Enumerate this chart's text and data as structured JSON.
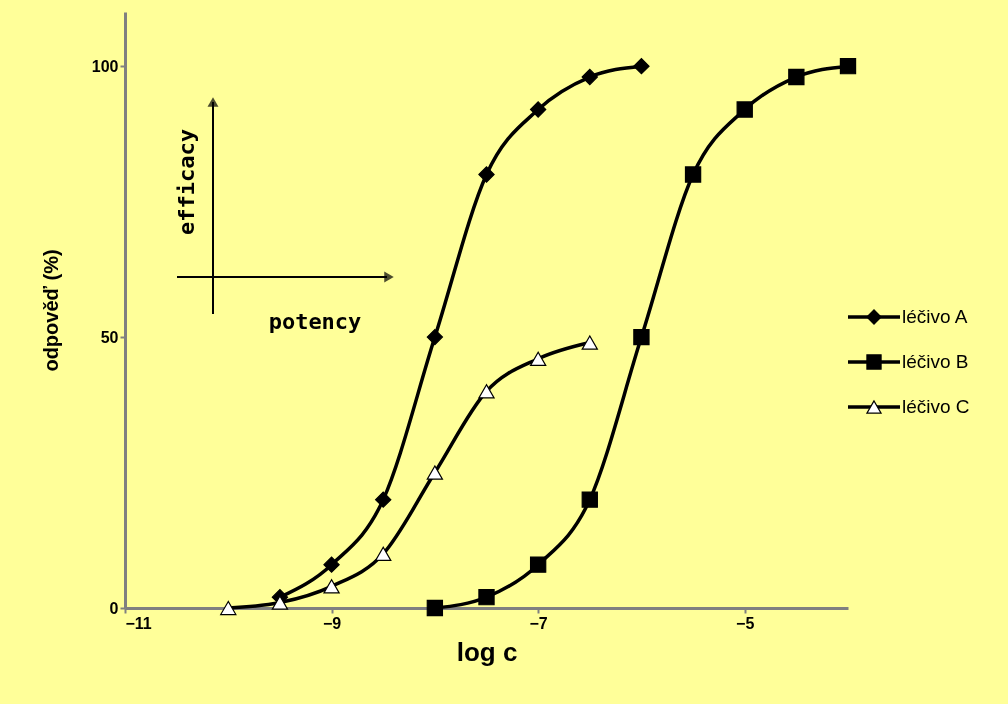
{
  "chart_data": {
    "type": "line",
    "xlabel": "log c",
    "ylabel": "odpověď (%)",
    "xlim": [
      -11,
      -4
    ],
    "ylim": [
      0,
      110
    ],
    "xticks": [
      -11,
      -9,
      -7,
      -5
    ],
    "yticks": [
      0,
      50,
      100
    ],
    "grid": false,
    "legend": "right",
    "line_style": "solid",
    "annotations": [
      "efficacy",
      "potency"
    ],
    "series": [
      {
        "name": "léčivo A",
        "color": "#000000",
        "marker": "diamond",
        "x": [
          -9.5,
          -9,
          -8.5,
          -8,
          -7.5,
          -7,
          -6.5,
          -6
        ],
        "values": [
          2,
          8,
          20,
          50,
          80,
          92,
          98,
          100
        ]
      },
      {
        "name": "léčivo B",
        "color": "#000000",
        "marker": "square",
        "x": [
          -8,
          -7.5,
          -7,
          -6.5,
          -6,
          -5.5,
          -5,
          -4.5,
          -4
        ],
        "values": [
          0,
          2,
          8,
          20,
          50,
          80,
          92,
          98,
          100
        ]
      },
      {
        "name": "léčivo C",
        "color": "#000000",
        "marker": "triangle",
        "x": [
          -10,
          -9.5,
          -9,
          -8.5,
          -8,
          -7.5,
          -7,
          -6.5
        ],
        "values": [
          0,
          1,
          4,
          10,
          25,
          40,
          46,
          49
        ]
      }
    ]
  }
}
